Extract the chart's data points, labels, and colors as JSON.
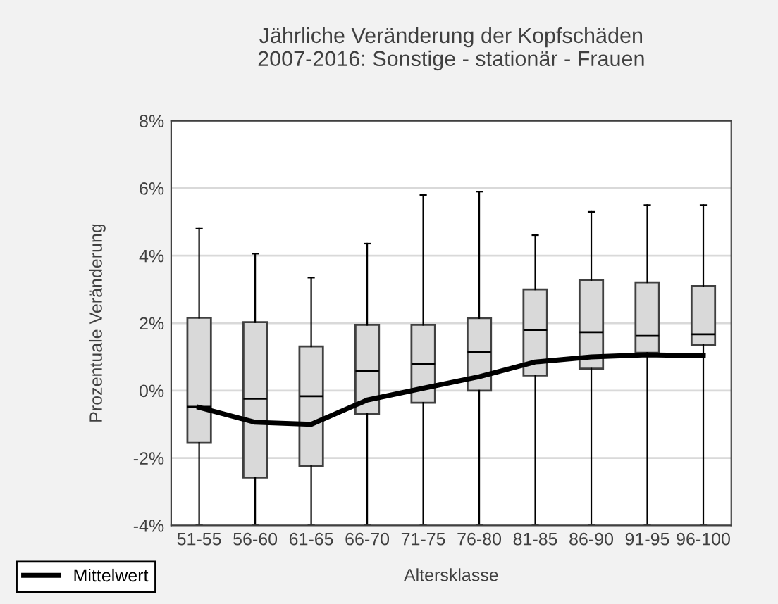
{
  "chart_data": {
    "type": "box",
    "title": "Jährliche Veränderung der Kopfschäden\n2007-2016: Sonstige - stationär - Frauen",
    "xlabel": "Altersklasse",
    "ylabel": "Prozentuale Veränderung",
    "categories": [
      "51-55",
      "56-60",
      "61-65",
      "66-70",
      "71-75",
      "76-80",
      "81-85",
      "86-90",
      "91-95",
      "96-100"
    ],
    "boxes": [
      {
        "low": -4,
        "q1": -1.55,
        "median": -0.48,
        "q3": 2.16,
        "high": 4.8
      },
      {
        "low": -4,
        "q1": -2.58,
        "median": -0.24,
        "q3": 2.03,
        "high": 4.06
      },
      {
        "low": -4,
        "q1": -2.23,
        "median": -0.17,
        "q3": 1.31,
        "high": 3.35
      },
      {
        "low": -4,
        "q1": -0.69,
        "median": 0.58,
        "q3": 1.95,
        "high": 4.36
      },
      {
        "low": -4,
        "q1": -0.36,
        "median": 0.8,
        "q3": 1.95,
        "high": 5.8
      },
      {
        "low": -4,
        "q1": 0.0,
        "median": 1.14,
        "q3": 2.15,
        "high": 5.9
      },
      {
        "low": -4,
        "q1": 0.45,
        "median": 1.8,
        "q3": 3.0,
        "high": 4.61
      },
      {
        "low": -4,
        "q1": 0.65,
        "median": 1.73,
        "q3": 3.28,
        "high": 5.3
      },
      {
        "low": -4,
        "q1": 1.12,
        "median": 1.62,
        "q3": 3.21,
        "high": 5.5
      },
      {
        "low": -4,
        "q1": 1.35,
        "median": 1.67,
        "q3": 3.1,
        "high": 5.5
      }
    ],
    "color": "#d9d9d9",
    "series": [
      {
        "type": "line",
        "name": "Mittelwert",
        "color": "#000000",
        "values": [
          -0.5,
          -0.94,
          -1.0,
          -0.28,
          0.07,
          0.41,
          0.85,
          1.0,
          1.06,
          1.03
        ]
      }
    ],
    "ylim": [
      -4,
      8
    ],
    "yticks": [
      {
        "value": -4,
        "label": "-4%"
      },
      {
        "value": -2,
        "label": "-2%"
      },
      {
        "value": 0,
        "label": "0%"
      },
      {
        "value": 2,
        "label": "2%"
      },
      {
        "value": 4,
        "label": "4%"
      },
      {
        "value": 6,
        "label": "6%"
      },
      {
        "value": 8,
        "label": "8%"
      }
    ],
    "grid": "y",
    "legend": "bottom left"
  }
}
